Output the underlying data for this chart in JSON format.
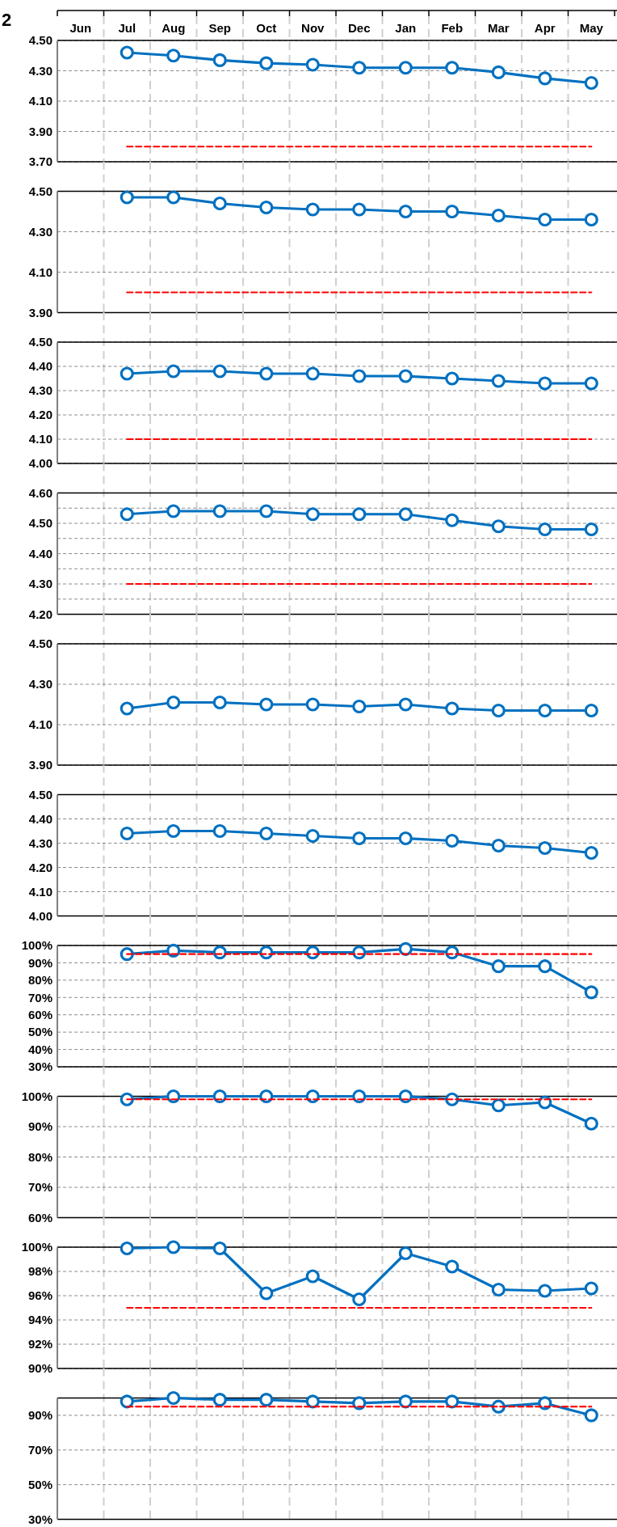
{
  "chart_data": [
    {
      "type": "line",
      "annotations": [
        "2"
      ],
      "categories": [
        "Jun",
        "Jul",
        "Aug",
        "Sep",
        "Oct",
        "Nov",
        "Dec",
        "Jan",
        "Feb",
        "Mar",
        "Apr",
        "May"
      ],
      "ylim": [
        3.7,
        4.5
      ],
      "yticks": [
        {
          "value": 3.7,
          "label": "3.70"
        },
        {
          "value": 3.9,
          "label": "3.90"
        },
        {
          "value": 4.1,
          "label": "4.10"
        },
        {
          "value": 4.3,
          "label": "4.30"
        },
        {
          "value": 4.5,
          "label": "4.50"
        }
      ],
      "grid": true,
      "series": [
        {
          "color": "#0070c0",
          "marker": "circle",
          "line_style": "solid",
          "values": [
            null,
            4.42,
            4.4,
            4.37,
            4.35,
            4.34,
            4.32,
            4.32,
            4.32,
            4.29,
            4.25,
            4.22
          ]
        },
        {
          "color": "#ff0000",
          "marker": "none",
          "line_style": "dashed",
          "values": [
            null,
            3.8,
            3.8,
            3.8,
            3.8,
            3.8,
            3.8,
            3.8,
            3.8,
            3.8,
            3.8,
            3.8
          ]
        }
      ]
    },
    {
      "type": "line",
      "tick_labels": "y",
      "categories": [
        null,
        null,
        null,
        null,
        null,
        null,
        null,
        null,
        null,
        null,
        null,
        null
      ],
      "ylim": [
        3.9,
        4.5
      ],
      "yticks": [
        {
          "value": 3.9,
          "label": "3.90"
        },
        {
          "value": 4.1,
          "label": "4.10"
        },
        {
          "value": 4.3,
          "label": "4.30"
        },
        {
          "value": 4.5,
          "label": "4.50"
        }
      ],
      "grid": true,
      "series": [
        {
          "color": "#0070c0",
          "marker": "circle",
          "line_style": "solid",
          "values": [
            null,
            4.47,
            4.47,
            4.44,
            4.42,
            4.41,
            4.41,
            4.4,
            4.4,
            4.38,
            4.36,
            4.36
          ]
        },
        {
          "color": "#ff0000",
          "marker": "none",
          "line_style": "dashed",
          "values": [
            null,
            4.0,
            4.0,
            4.0,
            4.0,
            4.0,
            4.0,
            4.0,
            4.0,
            4.0,
            4.0,
            4.0
          ]
        }
      ]
    },
    {
      "type": "line",
      "tick_labels": "y",
      "categories": [
        null,
        null,
        null,
        null,
        null,
        null,
        null,
        null,
        null,
        null,
        null,
        null
      ],
      "ylim": [
        4.0,
        4.5
      ],
      "yticks": [
        {
          "value": 4.0,
          "label": "4.00"
        },
        {
          "value": 4.1,
          "label": "4.10"
        },
        {
          "value": 4.2,
          "label": "4.20"
        },
        {
          "value": 4.3,
          "label": "4.30"
        },
        {
          "value": 4.4,
          "label": "4.40"
        },
        {
          "value": 4.5,
          "label": "4.50"
        }
      ],
      "grid": true,
      "series": [
        {
          "color": "#0070c0",
          "marker": "circle",
          "line_style": "solid",
          "values": [
            null,
            4.37,
            4.38,
            4.38,
            4.37,
            4.37,
            4.36,
            4.36,
            4.35,
            4.34,
            4.33,
            4.33
          ]
        },
        {
          "color": "#ff0000",
          "marker": "none",
          "line_style": "dashed",
          "values": [
            null,
            4.1,
            4.1,
            4.1,
            4.1,
            4.1,
            4.1,
            4.1,
            4.1,
            4.1,
            4.1,
            4.1
          ]
        }
      ]
    },
    {
      "type": "line",
      "tick_labels": "y",
      "categories": [
        null,
        null,
        null,
        null,
        null,
        null,
        null,
        null,
        null,
        null,
        null,
        null
      ],
      "ylim": [
        4.2,
        4.6
      ],
      "yticks": [
        {
          "value": 4.2,
          "label": "4.20"
        },
        {
          "value": 4.25,
          "label": null
        },
        {
          "value": 4.3,
          "label": "4.30"
        },
        {
          "value": 4.35,
          "label": null
        },
        {
          "value": 4.4,
          "label": "4.40"
        },
        {
          "value": 4.45,
          "label": null
        },
        {
          "value": 4.5,
          "label": "4.50"
        },
        {
          "value": 4.55,
          "label": null
        },
        {
          "value": 4.6,
          "label": "4.60"
        }
      ],
      "grid": true,
      "series": [
        {
          "color": "#0070c0",
          "marker": "circle",
          "line_style": "solid",
          "values": [
            null,
            4.53,
            4.54,
            4.54,
            4.54,
            4.53,
            4.53,
            4.53,
            4.51,
            4.49,
            4.48,
            4.48
          ]
        },
        {
          "color": "#ff0000",
          "marker": "none",
          "line_style": "dashed",
          "values": [
            null,
            4.3,
            4.3,
            4.3,
            4.3,
            4.3,
            4.3,
            4.3,
            4.3,
            4.3,
            4.3,
            4.3
          ]
        }
      ]
    },
    {
      "type": "line",
      "tick_labels": "y",
      "categories": [
        null,
        null,
        null,
        null,
        null,
        null,
        null,
        null,
        null,
        null,
        null,
        null
      ],
      "ylim": [
        3.9,
        4.5
      ],
      "yticks": [
        {
          "value": 3.9,
          "label": "3.90"
        },
        {
          "value": 4.1,
          "label": "4.10"
        },
        {
          "value": 4.3,
          "label": "4.30"
        },
        {
          "value": 4.5,
          "label": "4.50"
        }
      ],
      "grid": true,
      "series": [
        {
          "color": "#0070c0",
          "marker": "circle",
          "line_style": "solid",
          "values": [
            null,
            4.18,
            4.21,
            4.21,
            4.2,
            4.2,
            4.19,
            4.2,
            4.18,
            4.17,
            4.17,
            4.17
          ]
        }
      ]
    },
    {
      "type": "line",
      "tick_labels": "y",
      "categories": [
        null,
        null,
        null,
        null,
        null,
        null,
        null,
        null,
        null,
        null,
        null,
        null
      ],
      "ylim": [
        4.0,
        4.5
      ],
      "yticks": [
        {
          "value": 4.0,
          "label": "4.00"
        },
        {
          "value": 4.1,
          "label": "4.10"
        },
        {
          "value": 4.2,
          "label": "4.20"
        },
        {
          "value": 4.3,
          "label": "4.30"
        },
        {
          "value": 4.4,
          "label": "4.40"
        },
        {
          "value": 4.5,
          "label": "4.50"
        }
      ],
      "grid": true,
      "series": [
        {
          "color": "#0070c0",
          "marker": "circle",
          "line_style": "solid",
          "values": [
            null,
            4.34,
            4.35,
            4.35,
            4.34,
            4.33,
            4.32,
            4.32,
            4.31,
            4.29,
            4.28,
            4.26
          ]
        }
      ]
    },
    {
      "type": "line",
      "tick_labels": "y",
      "categories": [
        null,
        null,
        null,
        null,
        null,
        null,
        null,
        null,
        null,
        null,
        null,
        null
      ],
      "ylim": [
        30,
        100
      ],
      "yticks": [
        {
          "value": 30,
          "label": "30%"
        },
        {
          "value": 40,
          "label": "40%"
        },
        {
          "value": 50,
          "label": "50%"
        },
        {
          "value": 60,
          "label": "60%"
        },
        {
          "value": 70,
          "label": "70%"
        },
        {
          "value": 80,
          "label": "80%"
        },
        {
          "value": 90,
          "label": "90%"
        },
        {
          "value": 100,
          "label": "100%"
        }
      ],
      "grid": true,
      "series": [
        {
          "color": "#0070c0",
          "marker": "circle",
          "line_style": "solid",
          "values": [
            null,
            95,
            97,
            96,
            96,
            96,
            96,
            98,
            96,
            88,
            88,
            73
          ]
        },
        {
          "color": "#ff0000",
          "marker": "none",
          "line_style": "dashed",
          "values": [
            null,
            95,
            95,
            95,
            95,
            95,
            95,
            95,
            95,
            95,
            95,
            95
          ]
        }
      ]
    },
    {
      "type": "line",
      "tick_labels": "y",
      "categories": [
        null,
        null,
        null,
        null,
        null,
        null,
        null,
        null,
        null,
        null,
        null,
        null
      ],
      "ylim": [
        60,
        100
      ],
      "yticks": [
        {
          "value": 60,
          "label": "60%"
        },
        {
          "value": 70,
          "label": "70%"
        },
        {
          "value": 80,
          "label": "80%"
        },
        {
          "value": 90,
          "label": "90%"
        },
        {
          "value": 100,
          "label": "100%"
        }
      ],
      "grid": true,
      "series": [
        {
          "color": "#0070c0",
          "marker": "circle",
          "line_style": "solid",
          "values": [
            null,
            99,
            100,
            100,
            100,
            100,
            100,
            100,
            99,
            97,
            98,
            91
          ]
        },
        {
          "color": "#ff0000",
          "marker": "none",
          "line_style": "dashed",
          "values": [
            null,
            99,
            99,
            99,
            99,
            99,
            99,
            99,
            99,
            99,
            99,
            99
          ]
        }
      ]
    },
    {
      "type": "line",
      "tick_labels": "y",
      "categories": [
        null,
        null,
        null,
        null,
        null,
        null,
        null,
        null,
        null,
        null,
        null,
        null
      ],
      "ylim": [
        90,
        100
      ],
      "yticks": [
        {
          "value": 90,
          "label": "90%"
        },
        {
          "value": 92,
          "label": "92%"
        },
        {
          "value": 94,
          "label": "94%"
        },
        {
          "value": 96,
          "label": "96%"
        },
        {
          "value": 98,
          "label": "98%"
        },
        {
          "value": 100,
          "label": "100%"
        }
      ],
      "grid": true,
      "series": [
        {
          "color": "#0070c0",
          "marker": "circle",
          "line_style": "solid",
          "values": [
            null,
            99.9,
            100,
            99.9,
            96.2,
            97.6,
            95.7,
            99.5,
            98.4,
            96.5,
            96.4,
            96.6
          ]
        },
        {
          "color": "#ff0000",
          "marker": "none",
          "line_style": "dashed",
          "values": [
            null,
            95,
            95,
            95,
            95,
            95,
            95,
            95,
            95,
            95,
            95,
            95
          ]
        }
      ]
    },
    {
      "type": "line",
      "tick_labels": "y",
      "categories": [
        null,
        null,
        null,
        null,
        null,
        null,
        null,
        null,
        null,
        null,
        null,
        null
      ],
      "ylim": [
        30,
        100
      ],
      "yticks": [
        {
          "value": 30,
          "label": "30%"
        },
        {
          "value": 50,
          "label": "50%"
        },
        {
          "value": 70,
          "label": "70%"
        },
        {
          "value": 90,
          "label": "90%"
        }
      ],
      "grid": true,
      "series": [
        {
          "color": "#0070c0",
          "marker": "circle",
          "line_style": "solid",
          "values": [
            null,
            98,
            100,
            99,
            99,
            98,
            97,
            98,
            98,
            95,
            97,
            90
          ]
        },
        {
          "color": "#ff0000",
          "marker": "none",
          "line_style": "dashed",
          "values": [
            null,
            95,
            95,
            95,
            95,
            95,
            95,
            95,
            95,
            95,
            95,
            95
          ]
        }
      ]
    }
  ]
}
